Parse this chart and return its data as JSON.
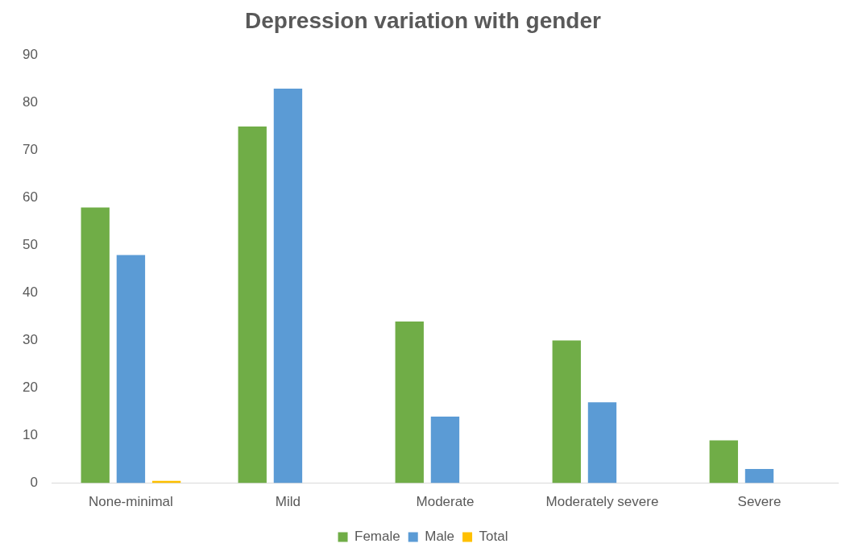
{
  "chart_data": {
    "type": "bar",
    "title": "Depression variation with gender",
    "categories": [
      "None-minimal",
      "Mild",
      "Moderate",
      "Moderately severe",
      "Severe"
    ],
    "series": [
      {
        "name": "Female",
        "color": "#70ad47",
        "values": [
          58,
          75,
          34,
          30,
          9
        ]
      },
      {
        "name": "Male",
        "color": "#5b9bd5",
        "values": [
          48,
          83,
          14,
          17,
          3
        ]
      },
      {
        "name": "Total",
        "color": "#ffc000",
        "values": [
          0.5,
          null,
          null,
          null,
          null
        ]
      }
    ],
    "ylim": [
      0,
      90
    ],
    "yticks": [
      0,
      10,
      20,
      30,
      40,
      50,
      60,
      70,
      80,
      90
    ],
    "grid": false,
    "legend": "bottom"
  }
}
